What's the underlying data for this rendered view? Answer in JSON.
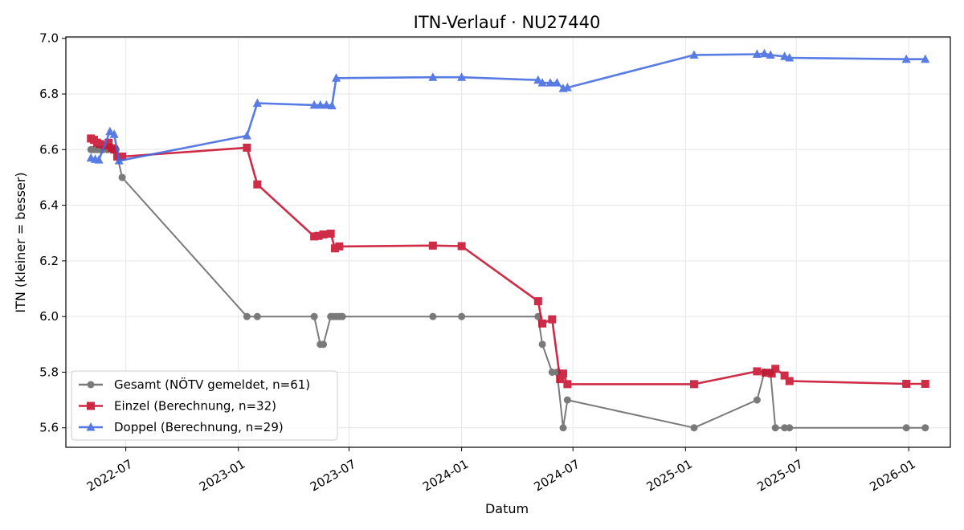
{
  "chart_data": {
    "type": "line",
    "title": "ITN-Verlauf · NU27440",
    "xlabel": "Datum",
    "ylabel": "ITN  (kleiner = besser)",
    "xlim": [
      "2022-03-25",
      "2026-03-10"
    ],
    "ylim": [
      5.53,
      7.005
    ],
    "x_ticks": [
      "2022-07-01",
      "2023-01-01",
      "2023-07-01",
      "2024-01-01",
      "2024-07-01",
      "2025-01-01",
      "2025-07-01",
      "2026-01-01"
    ],
    "x_tick_labels": [
      "2022-07",
      "2023-01",
      "2023-07",
      "2024-01",
      "2024-07",
      "2025-01",
      "2025-07",
      "2026-01"
    ],
    "y_ticks": [
      5.6,
      5.8,
      6.0,
      6.2,
      6.4,
      6.6,
      6.8,
      7.0
    ],
    "y_tick_labels": [
      "5.6",
      "5.8",
      "6.0",
      "6.2",
      "6.4",
      "6.6",
      "6.8",
      "7.0"
    ],
    "grid": true,
    "legend_position": "lower-left",
    "series": [
      {
        "name": "Gesamt (NÖTV gemeldet, n=61)",
        "color": "#555555",
        "marker": "circle",
        "points": [
          [
            "2022-05-05",
            6.6
          ],
          [
            "2022-05-10",
            6.6
          ],
          [
            "2022-05-15",
            6.6
          ],
          [
            "2022-05-20",
            6.6
          ],
          [
            "2022-05-25",
            6.6
          ],
          [
            "2022-06-01",
            6.6
          ],
          [
            "2022-06-05",
            6.61
          ],
          [
            "2022-06-10",
            6.6
          ],
          [
            "2022-06-15",
            6.6
          ],
          [
            "2022-06-25",
            6.5
          ],
          [
            "2023-01-15",
            6.0
          ],
          [
            "2023-02-01",
            6.0
          ],
          [
            "2023-05-05",
            6.0
          ],
          [
            "2023-05-15",
            5.9
          ],
          [
            "2023-05-20",
            5.9
          ],
          [
            "2023-06-01",
            6.0
          ],
          [
            "2023-06-05",
            6.0
          ],
          [
            "2023-06-10",
            6.0
          ],
          [
            "2023-06-15",
            6.0
          ],
          [
            "2023-06-20",
            6.0
          ],
          [
            "2023-11-15",
            6.0
          ],
          [
            "2024-01-01",
            6.0
          ],
          [
            "2024-05-05",
            6.0
          ],
          [
            "2024-05-12",
            5.9
          ],
          [
            "2024-05-28",
            5.8
          ],
          [
            "2024-06-05",
            5.8
          ],
          [
            "2024-06-15",
            5.6
          ],
          [
            "2024-06-22",
            5.7
          ],
          [
            "2025-01-15",
            5.6
          ],
          [
            "2025-04-28",
            5.7
          ],
          [
            "2025-05-10",
            5.8
          ],
          [
            "2025-05-20",
            5.8
          ],
          [
            "2025-05-28",
            5.6
          ],
          [
            "2025-06-12",
            5.6
          ],
          [
            "2025-06-20",
            5.6
          ],
          [
            "2025-12-28",
            5.6
          ],
          [
            "2026-01-28",
            5.6
          ]
        ]
      },
      {
        "name": "Einzel (Berechnung, n=32)",
        "color": "#c8102e",
        "marker": "square",
        "points": [
          [
            "2022-05-05",
            6.64
          ],
          [
            "2022-05-10",
            6.635
          ],
          [
            "2022-05-15",
            6.625
          ],
          [
            "2022-05-20",
            6.62
          ],
          [
            "2022-05-28",
            6.615
          ],
          [
            "2022-06-03",
            6.625
          ],
          [
            "2022-06-08",
            6.605
          ],
          [
            "2022-06-12",
            6.6
          ],
          [
            "2022-06-17",
            6.575
          ],
          [
            "2022-06-25",
            6.575
          ],
          [
            "2023-01-15",
            6.607
          ],
          [
            "2023-02-01",
            6.475
          ],
          [
            "2023-05-05",
            6.288
          ],
          [
            "2023-05-12",
            6.29
          ],
          [
            "2023-05-20",
            6.295
          ],
          [
            "2023-06-01",
            6.298
          ],
          [
            "2023-06-08",
            6.245
          ],
          [
            "2023-06-15",
            6.252
          ],
          [
            "2023-11-15",
            6.255
          ],
          [
            "2024-01-01",
            6.253
          ],
          [
            "2024-05-05",
            6.055
          ],
          [
            "2024-05-12",
            5.975
          ],
          [
            "2024-05-28",
            5.99
          ],
          [
            "2024-06-10",
            5.775
          ],
          [
            "2024-06-15",
            5.795
          ],
          [
            "2024-06-22",
            5.757
          ],
          [
            "2025-01-15",
            5.757
          ],
          [
            "2025-04-28",
            5.803
          ],
          [
            "2025-05-12",
            5.798
          ],
          [
            "2025-05-22",
            5.795
          ],
          [
            "2025-05-28",
            5.812
          ],
          [
            "2025-06-12",
            5.788
          ],
          [
            "2025-06-20",
            5.768
          ],
          [
            "2025-12-28",
            5.758
          ],
          [
            "2026-01-28",
            5.758
          ]
        ]
      },
      {
        "name": "Doppel (Berechnung, n=29)",
        "color": "#4169e1",
        "marker": "triangle",
        "points": [
          [
            "2022-05-05",
            6.57
          ],
          [
            "2022-05-12",
            6.565
          ],
          [
            "2022-05-18",
            6.563
          ],
          [
            "2022-06-05",
            6.665
          ],
          [
            "2022-06-12",
            6.655
          ],
          [
            "2022-06-20",
            6.56
          ],
          [
            "2023-01-15",
            6.65
          ],
          [
            "2023-02-01",
            6.767
          ],
          [
            "2023-05-05",
            6.76
          ],
          [
            "2023-05-15",
            6.76
          ],
          [
            "2023-05-25",
            6.76
          ],
          [
            "2023-06-03",
            6.758
          ],
          [
            "2023-06-10",
            6.857
          ],
          [
            "2023-11-15",
            6.86
          ],
          [
            "2024-01-01",
            6.86
          ],
          [
            "2024-05-05",
            6.85
          ],
          [
            "2024-05-12",
            6.84
          ],
          [
            "2024-05-25",
            6.84
          ],
          [
            "2024-06-05",
            6.84
          ],
          [
            "2024-06-15",
            6.82
          ],
          [
            "2024-06-22",
            6.823
          ],
          [
            "2025-01-15",
            6.94
          ],
          [
            "2025-04-28",
            6.943
          ],
          [
            "2025-05-10",
            6.945
          ],
          [
            "2025-05-20",
            6.94
          ],
          [
            "2025-06-12",
            6.935
          ],
          [
            "2025-06-20",
            6.93
          ],
          [
            "2025-12-28",
            6.925
          ],
          [
            "2026-01-28",
            6.925
          ]
        ]
      }
    ]
  }
}
